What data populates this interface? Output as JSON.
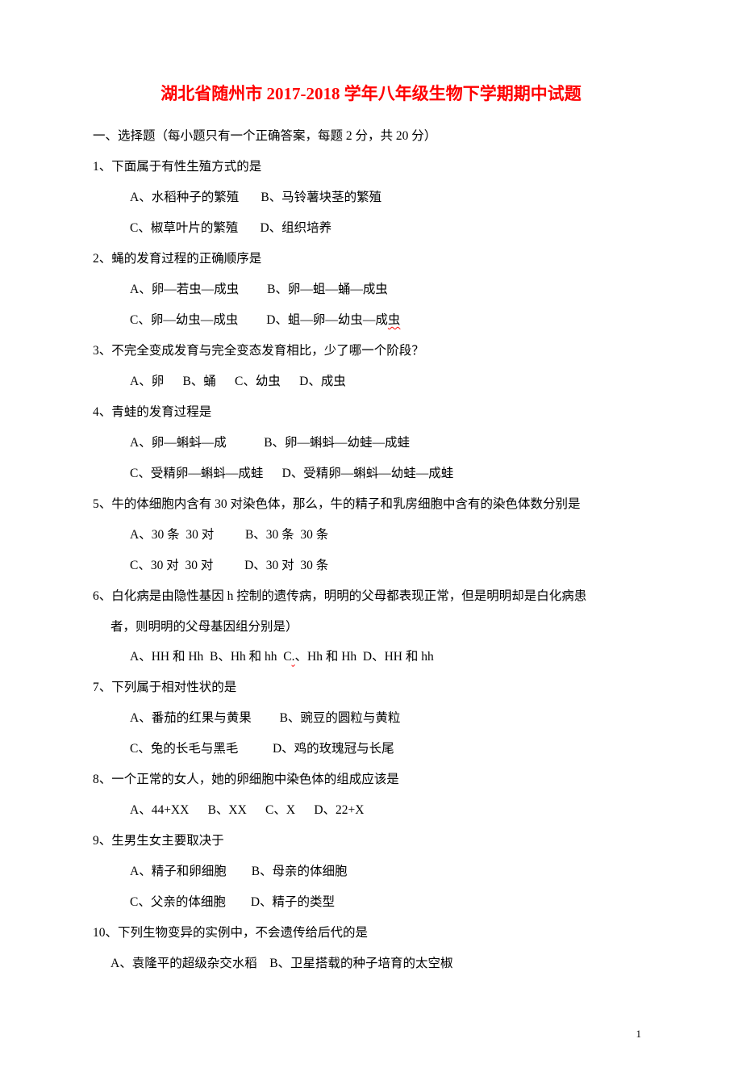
{
  "title": "湖北省随州市 2017-2018 学年八年级生物下学期期中试题",
  "section_header": "一、选择题（每小题只有一个正确答案，每题 2 分，共 20 分）",
  "questions": [
    {
      "q": "1、下面属于有性生殖方式的是",
      "opts": [
        "A、水稻种子的繁殖       B、马铃薯块茎的繁殖",
        "C、椒草叶片的繁殖       D、组织培养"
      ]
    },
    {
      "q": "2、蝇的发育过程的正确顺序是",
      "opts": [
        "A、卵—若虫—成虫         B、卵—蛆—蛹—成虫",
        "C、卵—幼虫—成虫         D、蛆—卵—幼虫—成虫"
      ],
      "wavy_last": true
    },
    {
      "q": "3、不完全变成发育与完全变态发育相比，少了哪一个阶段？",
      "opts": [
        "A、卵      B、蛹      C、幼虫      D、成虫"
      ]
    },
    {
      "q": "4、青蛙的发育过程是",
      "opts": [
        "A、卵—蝌蚪—成            B、卵—蝌蚪—幼蛙—成蛙",
        "C、受精卵—蝌蚪—成蛙      D、受精卵—蝌蚪—幼蛙—成蛙"
      ]
    },
    {
      "q": "5、牛的体细胞内含有 30 对染色体，那么，牛的精子和乳房细胞中含有的染色体数分别是",
      "opts": [
        "A、30 条  30 对          B、30 条  30 条",
        "C、30 对  30 对          D、30 对  30 条"
      ]
    },
    {
      "q": "6、白化病是由隐性基因 h 控制的遗传病，明明的父母都表现正常，但是明明却是白化病患",
      "cont": "者，则明明的父母基因组分别是）",
      "opts": [
        "A、HH 和 Hh  B、Hh 和 hh  C.、Hh 和 Hh  D、HH 和 hh"
      ],
      "c_wavy": true
    },
    {
      "q": "7、下列属于相对性状的是",
      "opts": [
        "A、番茄的红果与黄果         B、豌豆的圆粒与黄粒",
        "C、兔的长毛与黑毛           D、鸡的玫瑰冠与长尾"
      ]
    },
    {
      "q": "8、一个正常的女人，她的卵细胞中染色体的组成应该是",
      "opts": [
        "A、44+XX      B、XX      C、X      D、22+X"
      ]
    },
    {
      "q": "9、生男生女主要取决于",
      "opts": [
        "A、精子和卵细胞        B、母亲的体细胞",
        "C、父亲的体细胞        D、精子的类型"
      ]
    },
    {
      "q": "10、下列生物变异的实例中，不会遗传给后代的是",
      "opts": [],
      "short_opts": "A、袁隆平的超级杂交水稻    B、卫星搭载的种子培育的太空椒"
    }
  ],
  "page_number": "1",
  "colors": {
    "title_color": "#ff0000",
    "text_color": "#000000",
    "wavy_color": "#ff0000",
    "background": "#ffffff"
  },
  "typography": {
    "title_fontsize": 21,
    "body_fontsize": 15.5,
    "line_height": 2.45,
    "font_family": "SimSun"
  }
}
